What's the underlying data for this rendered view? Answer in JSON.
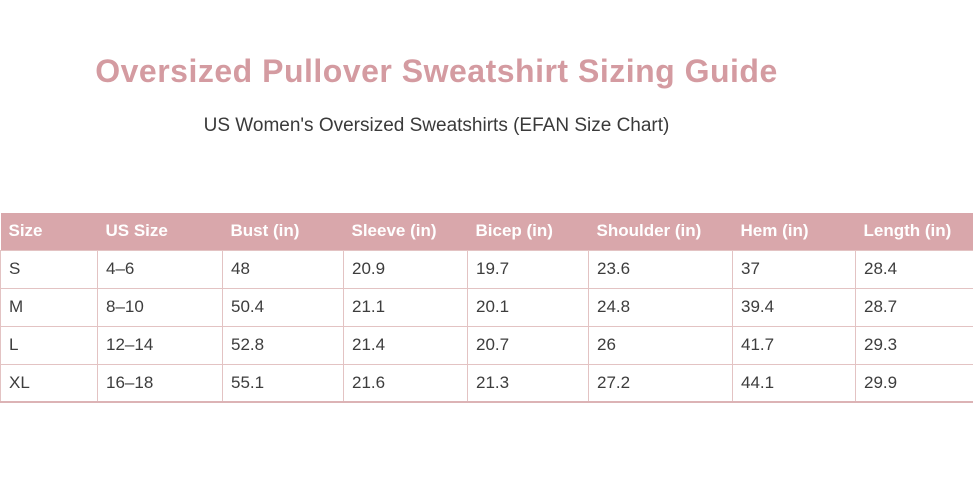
{
  "page": {
    "title": "Oversized Pullover Sweatshirt Sizing Guide",
    "subtitle": "US Women's Oversized Sweatshirts (EFAN Size Chart)"
  },
  "colors": {
    "title": "#d49ba1",
    "header_bg": "#d9a7ab",
    "header_text": "#ffffff",
    "border": "#e3c3c3",
    "body_text": "#3d3d3d"
  },
  "chart_data": {
    "type": "table",
    "title": "Oversized Pullover Sweatshirt Sizing Guide",
    "subtitle": "US Women's Oversized Sweatshirts (EFAN Size Chart)",
    "columns": [
      "Size",
      "US Size",
      "Bust (in)",
      "Sleeve (in)",
      "Bicep (in)",
      "Shoulder (in)",
      "Hem (in)",
      "Length (in)"
    ],
    "rows": [
      [
        "S",
        "4–6",
        "48",
        "20.9",
        "19.7",
        "23.6",
        "37",
        "28.4"
      ],
      [
        "M",
        "8–10",
        "50.4",
        "21.1",
        "20.1",
        "24.8",
        "39.4",
        "28.7"
      ],
      [
        "L",
        "12–14",
        "52.8",
        "21.4",
        "20.7",
        "26",
        "41.7",
        "29.3"
      ],
      [
        "XL",
        "16–18",
        "55.1",
        "21.6",
        "21.3",
        "27.2",
        "44.1",
        "29.9"
      ]
    ]
  }
}
